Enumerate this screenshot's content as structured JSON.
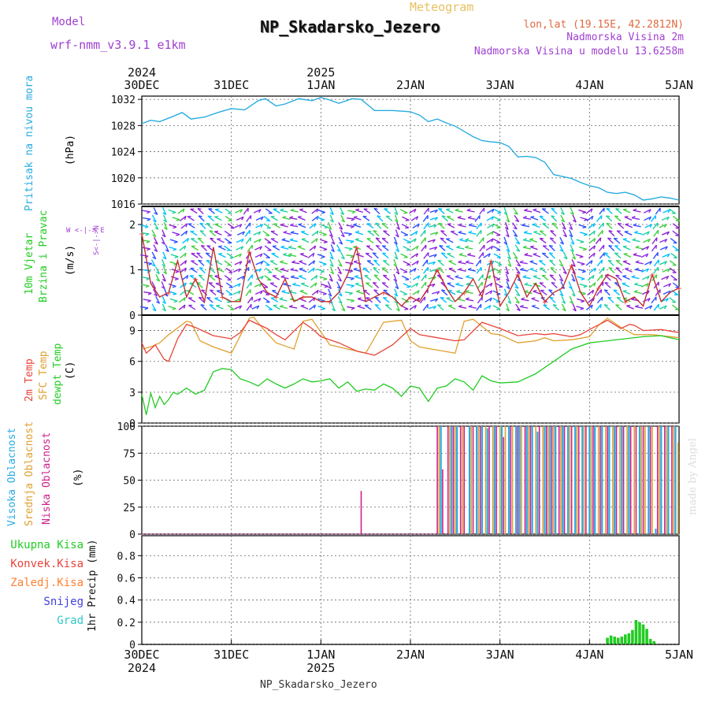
{
  "header": {
    "model_label": "Model",
    "model_name": "wrf-nmm_v3.9.1 e1km",
    "subtitle": "Meteogram",
    "title": "NP_Skadarsko_Jezero",
    "lonlat": "lon,lat (19.15E, 42.2812N)",
    "height": "Nadmorska Visina 2m",
    "model_height": "Nadmorska Visina u modelu 13.6258m",
    "credit": "made by Angel",
    "footer": "NP_Skadarsko_Jezero"
  },
  "colors": {
    "pressure": "#29abe2",
    "wind_label": "#22cc22",
    "temp2m": "#e8443a",
    "sfc": "#e0a030",
    "dew": "#22cc22",
    "high": "#29abe2",
    "mid": "#e0a030",
    "low": "#d0208c",
    "model": "#a040d0",
    "subtitle": "#e8c060",
    "lonlat": "#e06a40"
  },
  "axis": {
    "top_years": [
      "2024",
      "2025"
    ],
    "bottom_years": [
      "2024",
      "2025"
    ],
    "dates": [
      "30DEC",
      "31DEC",
      "1JAN",
      "2JAN",
      "3JAN",
      "4JAN",
      "5JAN"
    ]
  },
  "panels": {
    "pressure": {
      "label": "Pritisak na nivou mora",
      "unit": "(hPa)",
      "ticks": [
        "1016",
        "1020",
        "1024",
        "1028",
        "1032"
      ]
    },
    "wind": {
      "label1": "10m Vjetar",
      "label2": "Brzina i Pravac",
      "unit": "(m/s)",
      "compass": "W <-|-> E",
      "compass_v": "S<-|->N",
      "ticks": [
        "0",
        "1",
        "2"
      ]
    },
    "temp": {
      "label1": "2m Temp",
      "label2": "SFC Temp",
      "label3": "dewpt Temp",
      "unit": "(C)",
      "ticks": [
        "0",
        "3",
        "6",
        "9"
      ]
    },
    "cloud": {
      "label1": "Visoka Oblacnost",
      "label2": "Srednja Oblacnost",
      "label3": "Niska Oblacnost",
      "unit": "(%)",
      "ticks": [
        "0",
        "25",
        "50",
        "75",
        "100"
      ]
    },
    "precip": {
      "unit": "1hr Precip (mm)",
      "ticks": [
        "0",
        "0.2",
        "0.4",
        "0.6",
        "0.8"
      ],
      "legend": [
        {
          "label": "Ukupna Kisa",
          "color": "#22cc22"
        },
        {
          "label": "Konvek.Kisa",
          "color": "#e8443a"
        },
        {
          "label": "Zaledj.Kisa",
          "color": "#ff8030"
        },
        {
          "label": "Snijeg",
          "color": "#4040e0"
        },
        {
          "label": "Grad",
          "color": "#30c8c8"
        }
      ]
    }
  },
  "chart_data": [
    {
      "type": "line",
      "title": "",
      "ylabel": "Pritisak na nivou mora (hPa)",
      "ylim": [
        1016,
        1032.5
      ],
      "x_unit": "days since 30DEC",
      "series": [
        {
          "name": "Pritisak na nivou mora",
          "x": [
            0,
            0.1,
            0.2,
            0.35,
            0.45,
            0.55,
            0.7,
            0.85,
            1.0,
            1.15,
            1.3,
            1.38,
            1.5,
            1.6,
            1.75,
            1.9,
            2.0,
            2.1,
            2.2,
            2.35,
            2.45,
            2.6,
            2.8,
            3.0,
            3.1,
            3.2,
            3.3,
            3.4,
            3.5,
            3.6,
            3.7,
            3.8,
            3.9,
            4.0,
            4.1,
            4.2,
            4.3,
            4.4,
            4.5,
            4.6,
            4.7,
            4.8,
            4.9,
            5.0,
            5.1,
            5.2,
            5.3,
            5.4,
            5.5,
            5.6,
            5.7,
            5.8,
            5.9,
            6.0
          ],
          "values": [
            1028.3,
            1028.8,
            1028.6,
            1029.4,
            1030.0,
            1029.0,
            1029.3,
            1030.0,
            1030.6,
            1030.4,
            1031.8,
            1032.1,
            1031.0,
            1031.3,
            1032.1,
            1031.8,
            1032.3,
            1031.9,
            1031.4,
            1032.1,
            1032.0,
            1030.3,
            1030.3,
            1030.1,
            1029.6,
            1028.6,
            1029.0,
            1028.4,
            1027.9,
            1027.1,
            1026.3,
            1025.7,
            1025.5,
            1025.4,
            1024.8,
            1023.2,
            1023.3,
            1023.1,
            1022.4,
            1020.5,
            1020.2,
            1019.9,
            1019.3,
            1018.8,
            1018.5,
            1017.8,
            1017.6,
            1017.8,
            1017.4,
            1016.6,
            1016.8,
            1017.1,
            1016.9,
            1016.6
          ]
        }
      ]
    },
    {
      "type": "line",
      "title": "",
      "ylabel": "10m Vjetar Brzina i Pravac (m/s)",
      "ylim": [
        0,
        2.4
      ],
      "x_unit": "days since 30DEC",
      "series": [
        {
          "name": "10m Vjetar",
          "x": [
            0,
            0.1,
            0.2,
            0.3,
            0.4,
            0.5,
            0.6,
            0.7,
            0.8,
            0.9,
            1.0,
            1.1,
            1.2,
            1.3,
            1.4,
            1.5,
            1.6,
            1.7,
            1.8,
            1.9,
            2.0,
            2.1,
            2.2,
            2.3,
            2.4,
            2.5,
            2.6,
            2.7,
            2.8,
            2.9,
            3.0,
            3.1,
            3.2,
            3.3,
            3.4,
            3.5,
            3.6,
            3.7,
            3.8,
            3.9,
            4.0,
            4.1,
            4.2,
            4.3,
            4.4,
            4.5,
            4.6,
            4.7,
            4.8,
            4.9,
            5.0,
            5.1,
            5.2,
            5.3,
            5.4,
            5.5,
            5.6,
            5.7,
            5.8,
            5.9,
            6.0
          ],
          "values": [
            1.8,
            0.7,
            0.4,
            0.5,
            1.2,
            0.4,
            0.8,
            0.3,
            1.5,
            0.4,
            0.3,
            0.3,
            1.4,
            0.8,
            0.5,
            0.4,
            0.8,
            0.3,
            0.4,
            0.4,
            0.3,
            0.3,
            0.5,
            0.9,
            1.5,
            0.3,
            0.4,
            0.5,
            0.4,
            0.2,
            0.4,
            0.3,
            0.6,
            1.0,
            0.6,
            0.3,
            0.5,
            0.8,
            0.4,
            1.2,
            0.2,
            0.5,
            0.9,
            0.4,
            0.7,
            0.3,
            0.5,
            0.6,
            1.1,
            0.5,
            0.2,
            0.6,
            0.9,
            0.8,
            0.3,
            0.4,
            0.2,
            0.9,
            0.3,
            0.5,
            0.6
          ]
        }
      ]
    },
    {
      "type": "line",
      "title": "",
      "ylabel": "(C)",
      "ylim": [
        0,
        10.5
      ],
      "x_unit": "days since 30DEC",
      "series": [
        {
          "name": "2m Temp",
          "x": [
            0,
            0.05,
            0.1,
            0.15,
            0.25,
            0.3,
            0.4,
            0.5,
            0.6,
            0.8,
            1.0,
            1.1,
            1.2,
            1.4,
            1.5,
            1.6,
            1.8,
            1.9,
            2.0,
            2.2,
            2.4,
            2.5,
            2.6,
            2.8,
            3.0,
            3.1,
            3.3,
            3.5,
            3.6,
            3.8,
            4.0,
            4.2,
            4.4,
            4.5,
            4.6,
            4.8,
            4.9,
            5.0,
            5.2,
            5.35,
            5.45,
            5.5,
            5.6,
            5.8,
            6.0
          ],
          "values": [
            7.8,
            6.8,
            7.2,
            7.6,
            6.2,
            6.0,
            8.2,
            9.6,
            9.3,
            8.5,
            8.2,
            8.8,
            10.0,
            9.2,
            8.6,
            8.1,
            9.8,
            9.2,
            8.4,
            7.8,
            7.0,
            6.8,
            6.6,
            7.6,
            9.2,
            8.6,
            8.3,
            8.0,
            8.1,
            9.8,
            9.2,
            8.5,
            8.7,
            8.6,
            8.7,
            8.4,
            8.6,
            9.1,
            10.0,
            9.2,
            9.6,
            9.5,
            9.0,
            9.1,
            8.8
          ]
        },
        {
          "name": "SFC Temp",
          "x": [
            0,
            0.1,
            0.2,
            0.3,
            0.5,
            0.55,
            0.65,
            0.8,
            1.0,
            1.2,
            1.25,
            1.35,
            1.5,
            1.7,
            1.8,
            1.9,
            2.1,
            2.3,
            2.5,
            2.7,
            2.9,
            3.0,
            3.1,
            3.3,
            3.5,
            3.6,
            3.7,
            3.9,
            4.0,
            4.2,
            4.4,
            4.5,
            4.6,
            4.8,
            5.0,
            5.1,
            5.2,
            5.35,
            5.5,
            5.7,
            6.0
          ],
          "values": [
            7.2,
            7.4,
            7.8,
            8.6,
            9.9,
            9.8,
            8.0,
            7.4,
            6.8,
            10.2,
            10.3,
            9.2,
            7.8,
            7.2,
            9.9,
            10.1,
            7.6,
            7.2,
            6.8,
            9.8,
            10.0,
            8.0,
            7.4,
            7.1,
            6.8,
            9.9,
            10.1,
            8.7,
            8.6,
            7.8,
            8.0,
            8.3,
            8.0,
            8.1,
            8.4,
            9.5,
            10.2,
            9.3,
            8.6,
            8.6,
            8.3
          ]
        },
        {
          "name": "dewpt Temp",
          "x": [
            0,
            0.05,
            0.1,
            0.15,
            0.2,
            0.25,
            0.3,
            0.35,
            0.4,
            0.5,
            0.6,
            0.7,
            0.8,
            0.9,
            1.0,
            1.1,
            1.2,
            1.3,
            1.4,
            1.5,
            1.6,
            1.7,
            1.8,
            1.9,
            2.0,
            2.1,
            2.2,
            2.3,
            2.4,
            2.5,
            2.6,
            2.7,
            2.8,
            2.9,
            3.0,
            3.1,
            3.2,
            3.3,
            3.4,
            3.5,
            3.6,
            3.7,
            3.8,
            3.9,
            4.0,
            4.2,
            4.4,
            4.6,
            4.8,
            5.0,
            5.2,
            5.4,
            5.6,
            5.8,
            6.0
          ],
          "values": [
            2.8,
            0.8,
            2.9,
            1.5,
            2.6,
            1.8,
            2.3,
            3.0,
            2.8,
            3.4,
            2.8,
            3.2,
            5.0,
            5.3,
            5.2,
            4.3,
            4.0,
            3.6,
            4.3,
            3.8,
            3.4,
            3.8,
            4.3,
            4.0,
            4.1,
            4.3,
            3.4,
            4.0,
            3.1,
            3.3,
            3.2,
            3.8,
            3.4,
            2.6,
            3.6,
            3.4,
            2.1,
            3.4,
            3.6,
            4.3,
            4.0,
            3.2,
            4.6,
            4.1,
            3.9,
            4.0,
            4.8,
            6.0,
            7.2,
            7.8,
            8.0,
            8.2,
            8.4,
            8.5,
            8.1
          ]
        }
      ]
    },
    {
      "type": "bar",
      "title": "",
      "ylabel": "(%)",
      "ylim": [
        0,
        100
      ],
      "x_unit": "days since 30DEC",
      "series": [
        {
          "name": "Visoka Oblacnost",
          "x": [
            3.34,
            3.46,
            3.52,
            3.66,
            3.74,
            3.8,
            3.86,
            3.94,
            4.02,
            4.1,
            4.18,
            4.22,
            4.3,
            4.36,
            4.42,
            4.5,
            4.56,
            4.62,
            4.7,
            4.76,
            4.84,
            4.92,
            5.0,
            5.06,
            5.14,
            5.22,
            5.28,
            5.36,
            5.44,
            5.56,
            5.66,
            5.74,
            5.8,
            5.88,
            5.96
          ],
          "values": [
            100,
            100,
            100,
            100,
            100,
            100,
            98,
            100,
            100,
            100,
            100,
            100,
            100,
            100,
            95,
            100,
            100,
            100,
            100,
            100,
            100,
            100,
            100,
            100,
            100,
            100,
            100,
            100,
            100,
            100,
            100,
            5,
            100,
            100,
            100
          ]
        },
        {
          "name": "Srednja Oblacnost",
          "x": [
            3.32,
            3.44,
            3.5,
            3.58,
            3.68,
            3.76,
            3.84,
            3.92,
            4.0,
            4.06,
            4.14,
            4.24,
            4.32,
            4.4,
            4.48,
            4.54,
            4.6,
            4.68,
            4.78,
            4.86,
            4.94,
            5.02,
            5.1,
            5.18,
            5.26,
            5.34,
            5.42,
            5.5,
            5.58,
            5.62,
            5.7,
            5.78,
            5.86,
            5.94,
            5.99
          ],
          "values": [
            100,
            100,
            100,
            100,
            100,
            100,
            100,
            100,
            100,
            100,
            100,
            100,
            100,
            100,
            100,
            100,
            100,
            100,
            100,
            100,
            100,
            100,
            100,
            100,
            100,
            100,
            100,
            100,
            100,
            100,
            100,
            100,
            100,
            100,
            85
          ]
        },
        {
          "name": "Niska Oblacnost",
          "x": [
            2.45,
            3.3,
            3.36,
            3.42,
            3.48,
            3.56,
            3.6,
            3.7,
            3.78,
            3.88,
            3.96,
            4.04,
            4.12,
            4.2,
            4.28,
            4.34,
            4.44,
            4.52,
            4.58,
            4.66,
            4.72,
            4.8,
            4.88,
            4.96,
            5.04,
            5.12,
            5.2,
            5.3,
            5.38,
            5.46,
            5.52,
            5.6,
            5.68,
            5.76,
            5.84,
            5.92
          ],
          "values": [
            40,
            100,
            60,
            100,
            100,
            100,
            100,
            100,
            100,
            100,
            100,
            90,
            100,
            100,
            100,
            100,
            100,
            100,
            100,
            100,
            100,
            100,
            100,
            100,
            100,
            100,
            100,
            100,
            100,
            100,
            100,
            100,
            100,
            100,
            100,
            100
          ]
        }
      ]
    },
    {
      "type": "bar",
      "title": "",
      "ylabel": "1hr Precip (mm)",
      "ylim": [
        0,
        0.98
      ],
      "x_unit": "days since 30DEC",
      "series": [
        {
          "name": "Ukupna Kisa",
          "x": [
            5.2,
            5.24,
            5.28,
            5.32,
            5.36,
            5.4,
            5.44,
            5.48,
            5.52,
            5.56,
            5.6,
            5.64,
            5.68,
            5.72
          ],
          "values": [
            0.06,
            0.08,
            0.07,
            0.06,
            0.07,
            0.09,
            0.1,
            0.13,
            0.22,
            0.2,
            0.18,
            0.14,
            0.05,
            0.03
          ]
        }
      ]
    }
  ]
}
